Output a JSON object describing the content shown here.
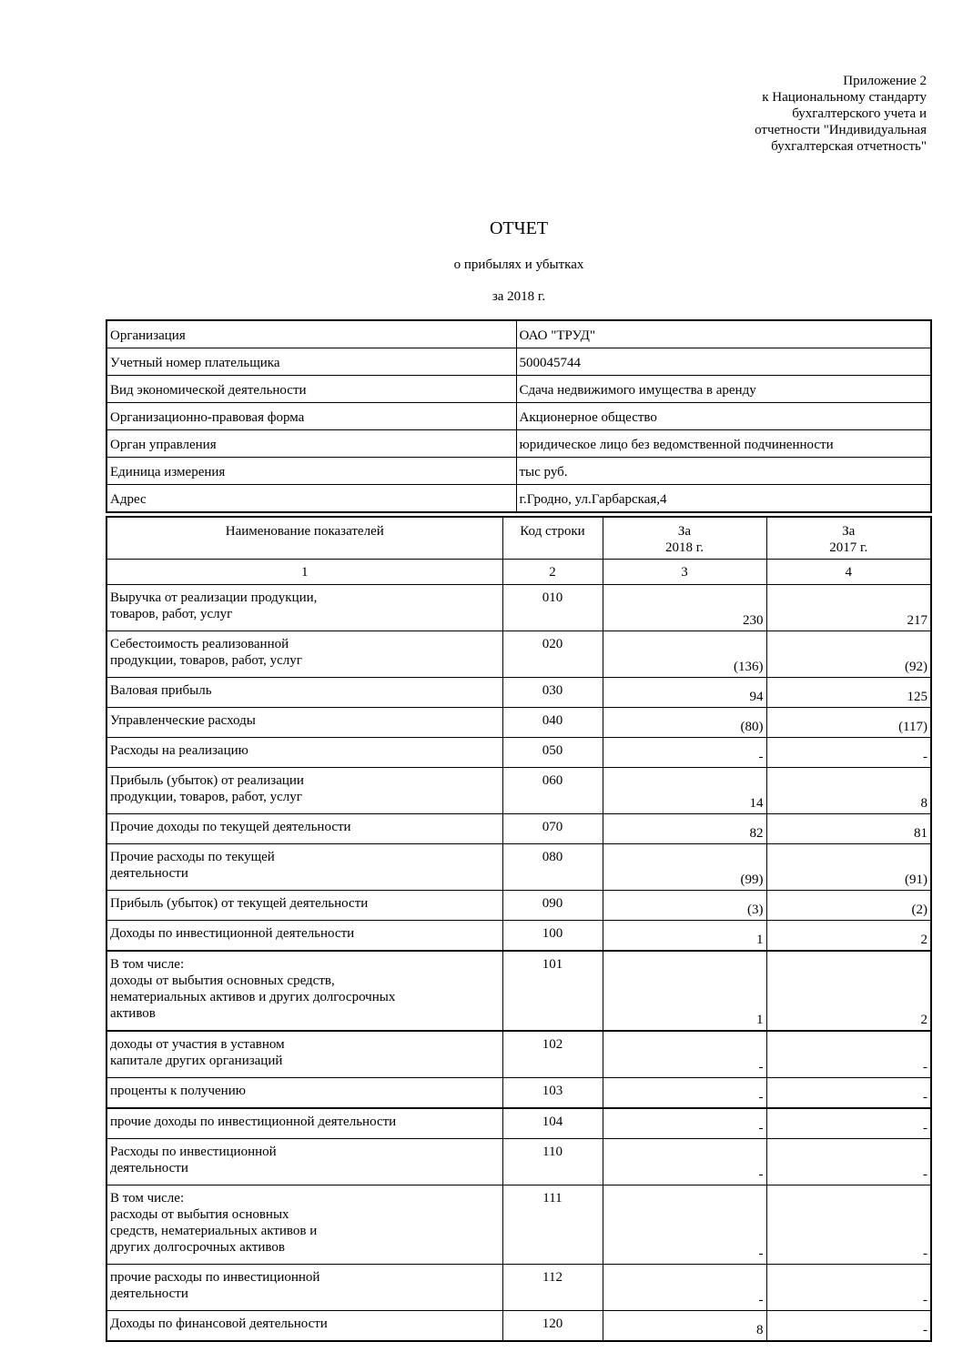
{
  "appendix": "Приложение 2\nк Национальному стандарту\nбухгалтерского учета и\nотчетности \"Индивидуальная\nбухгалтерская отчетность\"",
  "title": "ОТЧЕТ",
  "subtitle": "о прибылях и убытках",
  "period": "за  2018 г.",
  "info": [
    {
      "label": "Организация",
      "value": "ОАО \"ТРУД\""
    },
    {
      "label": "Учетный номер плательщика",
      "value": "500045744"
    },
    {
      "label": "Вид экономической деятельности",
      "value": "Сдача недвижимого имущества в аренду"
    },
    {
      "label": "Организационно-правовая форма",
      "value": "Акционерное общество"
    },
    {
      "label": "Орган управления",
      "value": "юридическое лицо без ведомственной подчиненности"
    },
    {
      "label": "Единица измерения",
      "value": "тыс руб."
    },
    {
      "label": "Адрес",
      "value": "г.Гродно, ул.Гарбарская,4"
    }
  ],
  "table": {
    "headers": [
      "Наименование показателей",
      "Код строки",
      "За\n2018 г.",
      "За\n2017 г."
    ],
    "column_numbers": [
      "1",
      "2",
      "3",
      "4"
    ],
    "rows": [
      {
        "name": "Выручка от реализации продукции,\nтоваров, работ, услуг",
        "code": "010",
        "y2018": "230",
        "y2017": "217"
      },
      {
        "name": "Себестоимость реализованной\n продукции, товаров, работ, услуг",
        "code": "020",
        "y2018": "(136)",
        "y2017": "(92)"
      },
      {
        "name": "Валовая прибыль",
        "code": "030",
        "y2018": "94",
        "y2017": "125"
      },
      {
        "name": "Управленческие расходы",
        "code": "040",
        "y2018": "(80)",
        "y2017": "(117)"
      },
      {
        "name": "Расходы на реализацию",
        "code": "050",
        "y2018": "-",
        "y2017": "-"
      },
      {
        "name": "Прибыль (убыток) от реализации\nпродукции, товаров, работ, услуг",
        "code": "060",
        "y2018": "14",
        "y2017": "8"
      },
      {
        "name": "Прочие доходы по текущей деятельности",
        "code": "070",
        "y2018": "82",
        "y2017": "81"
      },
      {
        "name": "Прочие расходы по текущей\nдеятельности",
        "code": "080",
        "y2018": "(99)",
        "y2017": "(91)"
      },
      {
        "name": "Прибыль (убыток) от текущей деятельности",
        "code": "090",
        "y2018": "(3)",
        "y2017": "(2)"
      },
      {
        "name": "Доходы по инвестиционной деятельности",
        "code": "100",
        "y2018": "1",
        "y2017": "2"
      },
      {
        "name": "В том числе:\nдоходы от выбытия основных средств,\nнематериальных активов и других долгосрочных\nактивов",
        "code": "101",
        "y2018": "1",
        "y2017": "2"
      },
      {
        "name": "доходы от участия в уставном\nкапитале других организаций",
        "code": "102",
        "y2018": "-",
        "y2017": "-"
      },
      {
        "name": "проценты к получению",
        "code": "103",
        "y2018": "-",
        "y2017": "-"
      },
      {
        "name": "прочие доходы по инвестиционной деятельности",
        "code": "104",
        "y2018": "-",
        "y2017": "-"
      },
      {
        "name": "Расходы по инвестиционной\nдеятельности",
        "code": "110",
        "y2018": "-",
        "y2017": "-"
      },
      {
        "name": "В том числе:\nрасходы от выбытия основных\nсредств, нематериальных активов и\nдругих долгосрочных активов",
        "code": "111",
        "y2018": "-",
        "y2017": "-"
      },
      {
        "name": "прочие расходы по инвестиционной\nдеятельности",
        "code": "112",
        "y2018": "-",
        "y2017": "-"
      },
      {
        "name": "Доходы по финансовой деятельности",
        "code": "120",
        "y2018": "8",
        "y2017": "-"
      }
    ]
  }
}
